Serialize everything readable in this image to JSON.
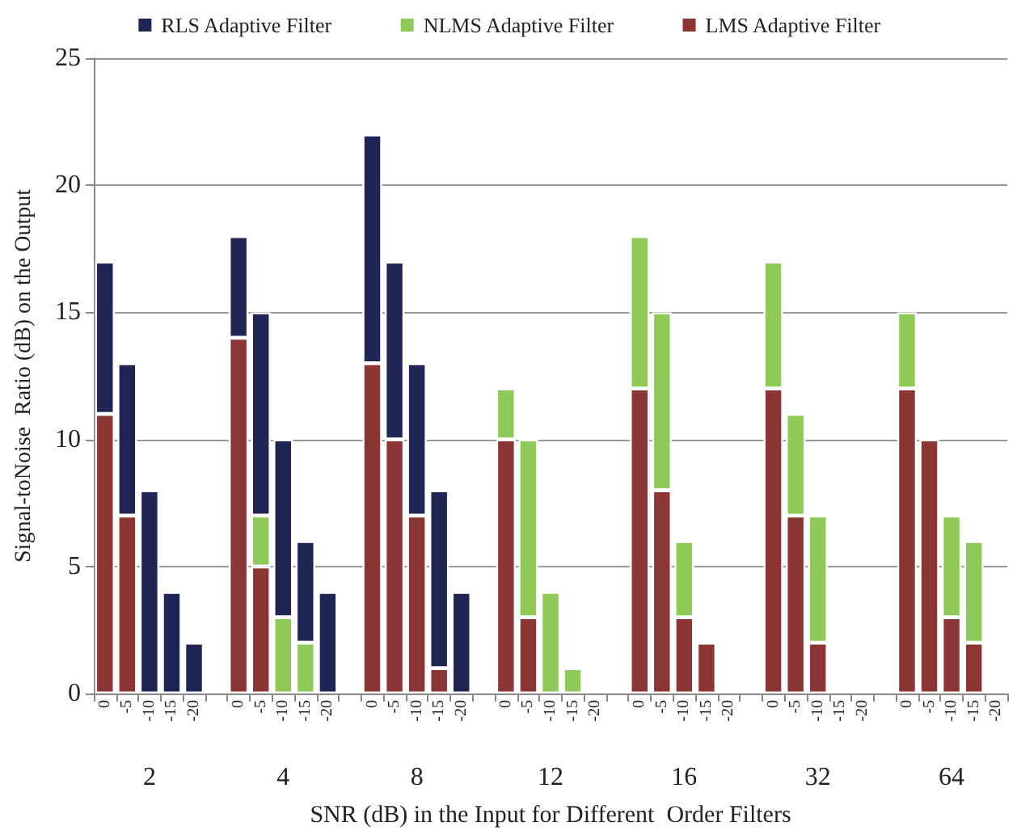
{
  "chart_data": {
    "type": "bar",
    "stacked": true,
    "xlabel": "SNR (dB) in the Input for Different  Order Filters",
    "ylabel": "Signal-toNoise  Ratio (dB) on the Output",
    "categories": [
      "0",
      "-5",
      "-10",
      "-15",
      "-20",
      null,
      "0",
      "-5",
      "-10",
      "-15",
      "-20",
      null,
      "0",
      "-5",
      "-10",
      "-15",
      "-20",
      null,
      "0",
      "-5",
      "-10",
      "-15",
      "-20",
      null,
      "0",
      "-5",
      "-10",
      "-15",
      "-20",
      null,
      "0",
      "-5",
      "-10",
      "-15",
      "-20",
      null,
      "0",
      "-5",
      "-10",
      "-15",
      "-20"
    ],
    "series": [
      {
        "name": "LMS Adaptive Filter",
        "color": "#8b3535",
        "values": [
          11,
          7,
          null,
          null,
          null,
          null,
          14,
          5,
          null,
          null,
          null,
          null,
          13,
          10,
          7,
          1,
          null,
          null,
          10,
          3,
          null,
          null,
          null,
          null,
          12,
          8,
          3,
          2,
          null,
          null,
          12,
          7,
          2,
          null,
          null,
          null,
          12,
          10,
          3,
          2,
          null
        ]
      },
      {
        "name": "NLMS Adaptive Filter",
        "color": "#8fc957",
        "values": [
          null,
          null,
          null,
          null,
          null,
          null,
          null,
          2,
          3,
          2,
          null,
          null,
          null,
          null,
          null,
          null,
          null,
          null,
          2,
          7,
          4,
          1,
          null,
          null,
          6,
          7,
          3,
          null,
          null,
          null,
          5,
          4,
          5,
          null,
          null,
          null,
          3,
          null,
          4,
          4,
          null
        ]
      },
      {
        "name": "RLS Adaptive Filter",
        "color": "#1f2555",
        "values": [
          6,
          6,
          8,
          4,
          2,
          null,
          4,
          8,
          7,
          4,
          4,
          null,
          9,
          7,
          6,
          7,
          4,
          null,
          null,
          null,
          null,
          null,
          null,
          null,
          null,
          null,
          null,
          null,
          null,
          null,
          null,
          null,
          null,
          null,
          null,
          null,
          null,
          null,
          null,
          null,
          null
        ]
      }
    ],
    "annotations": [
      "2",
      "4",
      "8",
      "12",
      "16",
      "32",
      "64"
    ],
    "ylim": [
      0,
      25
    ],
    "yticks": [
      0,
      5,
      10,
      15,
      20,
      25
    ],
    "grid": "y",
    "legend": "top"
  }
}
